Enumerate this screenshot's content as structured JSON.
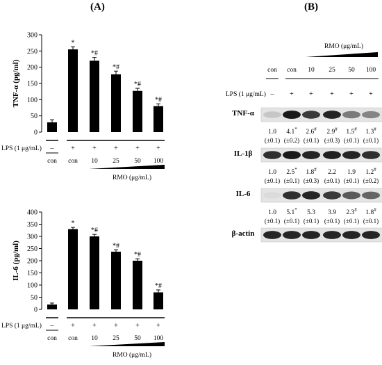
{
  "panels": {
    "a": "(A)",
    "b": "(B)"
  },
  "lps_label": "LPS (1 μg/mL)",
  "rmo_label": "RMO (μg/mL)",
  "conditions": {
    "lps": [
      "–",
      "+",
      "+",
      "+",
      "+",
      "+"
    ],
    "groups": [
      "con",
      "con",
      "10",
      "25",
      "50",
      "100"
    ]
  },
  "blot": {
    "header_groups": [
      "con",
      "con",
      "10",
      "25",
      "50",
      "100"
    ],
    "lps": [
      "–",
      "+",
      "+",
      "+",
      "+",
      "+"
    ],
    "bands": [
      {
        "name": "TNF-α",
        "values": [
          "1.0",
          "4.1",
          "2.6",
          "2.9",
          "1.5",
          "1.3"
        ],
        "marks": [
          "",
          "*",
          "#",
          "#",
          "#",
          "#"
        ],
        "sd": [
          "(±0.1)",
          "(±0.2)",
          "(±0.1)",
          "(±0.3)",
          "(±0.1)",
          "(±0.1)"
        ],
        "intensity": [
          0.15,
          0.95,
          0.8,
          0.9,
          0.5,
          0.45
        ]
      },
      {
        "name": "IL-1β",
        "values": [
          "1.0",
          "2.5",
          "1.8",
          "2.2",
          "1.9",
          "1.2"
        ],
        "marks": [
          "",
          "*",
          "#",
          "",
          "",
          "#"
        ],
        "sd": [
          "(±0.1)",
          "(±0.1)",
          "(±0.3)",
          "(±0.1)",
          "(±0.1)",
          "(±0.2)"
        ],
        "intensity": [
          0.85,
          0.95,
          0.9,
          0.92,
          0.9,
          0.85
        ]
      },
      {
        "name": "IL-6",
        "values": [
          "1.0",
          "5.1",
          "5.3",
          "3.9",
          "2.3",
          "1.8"
        ],
        "marks": [
          "",
          "*",
          "",
          "",
          "#",
          "#"
        ],
        "sd": [
          "(±0.1)",
          "(±0.1)",
          "(±0.1)",
          "(±0.1)",
          "(±0.1)",
          "(±0.1)"
        ],
        "intensity": [
          0.05,
          0.85,
          0.9,
          0.8,
          0.65,
          0.6
        ]
      },
      {
        "name": "β-actin",
        "values": [],
        "marks": [],
        "sd": [],
        "intensity": [
          0.9,
          0.9,
          0.9,
          0.9,
          0.9,
          0.9
        ]
      }
    ]
  },
  "chart_data": [
    {
      "type": "bar",
      "ylabel": "TNF-α (pg/ml)",
      "ylim": [
        0,
        300
      ],
      "yticks": [
        0,
        50,
        100,
        150,
        200,
        250,
        300
      ],
      "categories": [
        "con",
        "con",
        "10",
        "25",
        "50",
        "100"
      ],
      "values": [
        30,
        255,
        220,
        178,
        127,
        80
      ],
      "errors": [
        8,
        8,
        10,
        10,
        8,
        7
      ],
      "annotations": [
        "",
        "*",
        "*#",
        "*#",
        "*#",
        "*#"
      ]
    },
    {
      "type": "bar",
      "ylabel": "IL-6 (pg/ml)",
      "ylim": [
        0,
        400
      ],
      "yticks": [
        0,
        50,
        100,
        150,
        200,
        250,
        300,
        350,
        400
      ],
      "categories": [
        "con",
        "con",
        "10",
        "25",
        "50",
        "100"
      ],
      "values": [
        20,
        330,
        300,
        237,
        200,
        70
      ],
      "errors": [
        6,
        7,
        8,
        8,
        8,
        10
      ],
      "annotations": [
        "",
        "*",
        "*#",
        "*#",
        "*#",
        "*#"
      ]
    }
  ]
}
